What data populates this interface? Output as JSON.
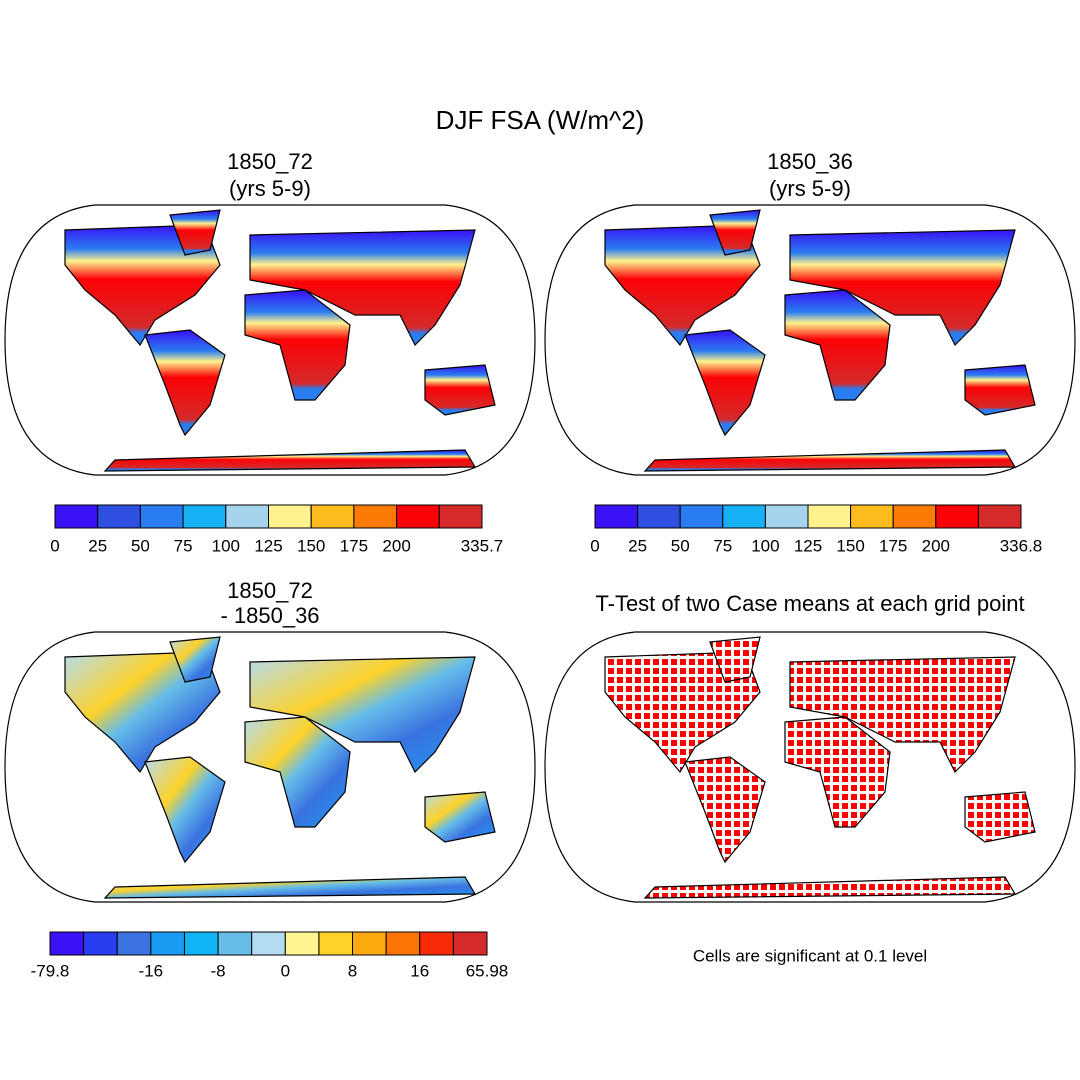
{
  "title": "DJF FSA (W/m^2)",
  "panels": [
    {
      "title": [
        "1850_72",
        "(yrs 5-9)"
      ],
      "colorbar": {
        "colors": [
          "#3a10f5",
          "#2e4fe0",
          "#2a7df0",
          "#17b2f5",
          "#a6d4ec",
          "#fef28e",
          "#fdbb1e",
          "#fc7a06",
          "#fb0206",
          "#d42a2a"
        ],
        "labels": [
          0,
          25,
          50,
          75,
          100,
          125,
          150,
          175,
          200,
          null,
          335.7
        ]
      }
    },
    {
      "title": [
        "1850_36",
        "(yrs 5-9)"
      ],
      "colorbar": {
        "colors": [
          "#3a10f5",
          "#2e4fe0",
          "#2a7df0",
          "#17b2f5",
          "#a6d4ec",
          "#fef28e",
          "#fdbb1e",
          "#fc7a06",
          "#fb0206",
          "#d42a2a"
        ],
        "labels": [
          0,
          25,
          50,
          75,
          100,
          125,
          150,
          175,
          200,
          null,
          336.8
        ]
      }
    },
    {
      "title": [
        "1850_72",
        "- 1850_36"
      ],
      "colorbar": {
        "colors": [
          "#3a10f5",
          "#2a3cf0",
          "#3a73e0",
          "#1a9af2",
          "#10b4f5",
          "#66bde8",
          "#b3dcf1",
          "#fff592",
          "#fdd22a",
          "#fcaa10",
          "#fc7406",
          "#f82a08",
          "#d42a2a"
        ],
        "labels": [
          -79.8,
          null,
          null,
          -16,
          null,
          -8,
          null,
          0,
          null,
          8,
          null,
          16,
          null,
          65.98
        ]
      }
    },
    {
      "title": [
        "T-Test of two Case means at each grid point"
      ],
      "note": "Cells are significant at 0.1 level"
    }
  ]
}
